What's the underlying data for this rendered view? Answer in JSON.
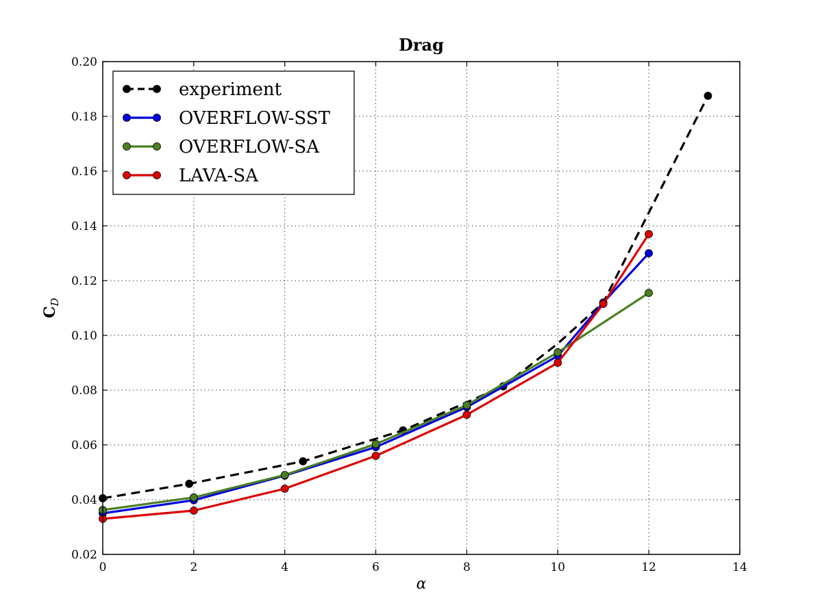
{
  "chart_data": {
    "type": "line",
    "title": "Drag",
    "xlabel": "α",
    "ylabel": "C",
    "ylabel_sub": "D",
    "xlim": [
      0,
      14
    ],
    "ylim": [
      0.02,
      0.2
    ],
    "xticks": [
      "0",
      "2",
      "4",
      "6",
      "8",
      "10",
      "12",
      "14"
    ],
    "yticks": [
      "0.02",
      "0.04",
      "0.06",
      "0.08",
      "0.10",
      "0.12",
      "0.14",
      "0.16",
      "0.18",
      "0.20"
    ],
    "grid": true,
    "legend_position": "top-left",
    "series": [
      {
        "name": "experiment",
        "color": "#000000",
        "dashed": true,
        "points": [
          {
            "x": 0.0,
            "y": 0.0405
          },
          {
            "x": 1.9,
            "y": 0.0458
          },
          {
            "x": 4.4,
            "y": 0.054
          },
          {
            "x": 6.6,
            "y": 0.0653
          },
          {
            "x": 8.8,
            "y": 0.0814
          },
          {
            "x": 10.0,
            "y": 0.097
          },
          {
            "x": 11.0,
            "y": 0.112
          },
          {
            "x": 13.3,
            "y": 0.1875
          }
        ],
        "markers": [
          {
            "x": 0.0,
            "y": 0.0405
          },
          {
            "x": 1.9,
            "y": 0.0458
          },
          {
            "x": 4.4,
            "y": 0.054
          },
          {
            "x": 6.6,
            "y": 0.0653
          },
          {
            "x": 8.8,
            "y": 0.0814
          },
          {
            "x": 13.3,
            "y": 0.1875
          }
        ]
      },
      {
        "name": "OVERFLOW-SST",
        "color": "#0000dd",
        "dashed": false,
        "points": [
          {
            "x": 0,
            "y": 0.035
          },
          {
            "x": 2,
            "y": 0.0398
          },
          {
            "x": 4,
            "y": 0.0488
          },
          {
            "x": 6,
            "y": 0.0592
          },
          {
            "x": 8,
            "y": 0.0738
          },
          {
            "x": 10,
            "y": 0.0925
          },
          {
            "x": 11,
            "y": 0.112
          },
          {
            "x": 12,
            "y": 0.13
          }
        ]
      },
      {
        "name": "OVERFLOW-SA",
        "color": "#4a7f22",
        "dashed": false,
        "points": [
          {
            "x": 0,
            "y": 0.0362
          },
          {
            "x": 2,
            "y": 0.0408
          },
          {
            "x": 4,
            "y": 0.049
          },
          {
            "x": 6,
            "y": 0.0603
          },
          {
            "x": 8,
            "y": 0.0745
          },
          {
            "x": 10,
            "y": 0.0938
          },
          {
            "x": 12,
            "y": 0.1155
          }
        ]
      },
      {
        "name": "LAVA-SA",
        "color": "#dd0000",
        "dashed": false,
        "points": [
          {
            "x": 0,
            "y": 0.033
          },
          {
            "x": 2,
            "y": 0.036
          },
          {
            "x": 4,
            "y": 0.044
          },
          {
            "x": 6,
            "y": 0.056
          },
          {
            "x": 8,
            "y": 0.071
          },
          {
            "x": 10,
            "y": 0.09
          },
          {
            "x": 11,
            "y": 0.1115
          },
          {
            "x": 12,
            "y": 0.137
          }
        ]
      }
    ]
  }
}
